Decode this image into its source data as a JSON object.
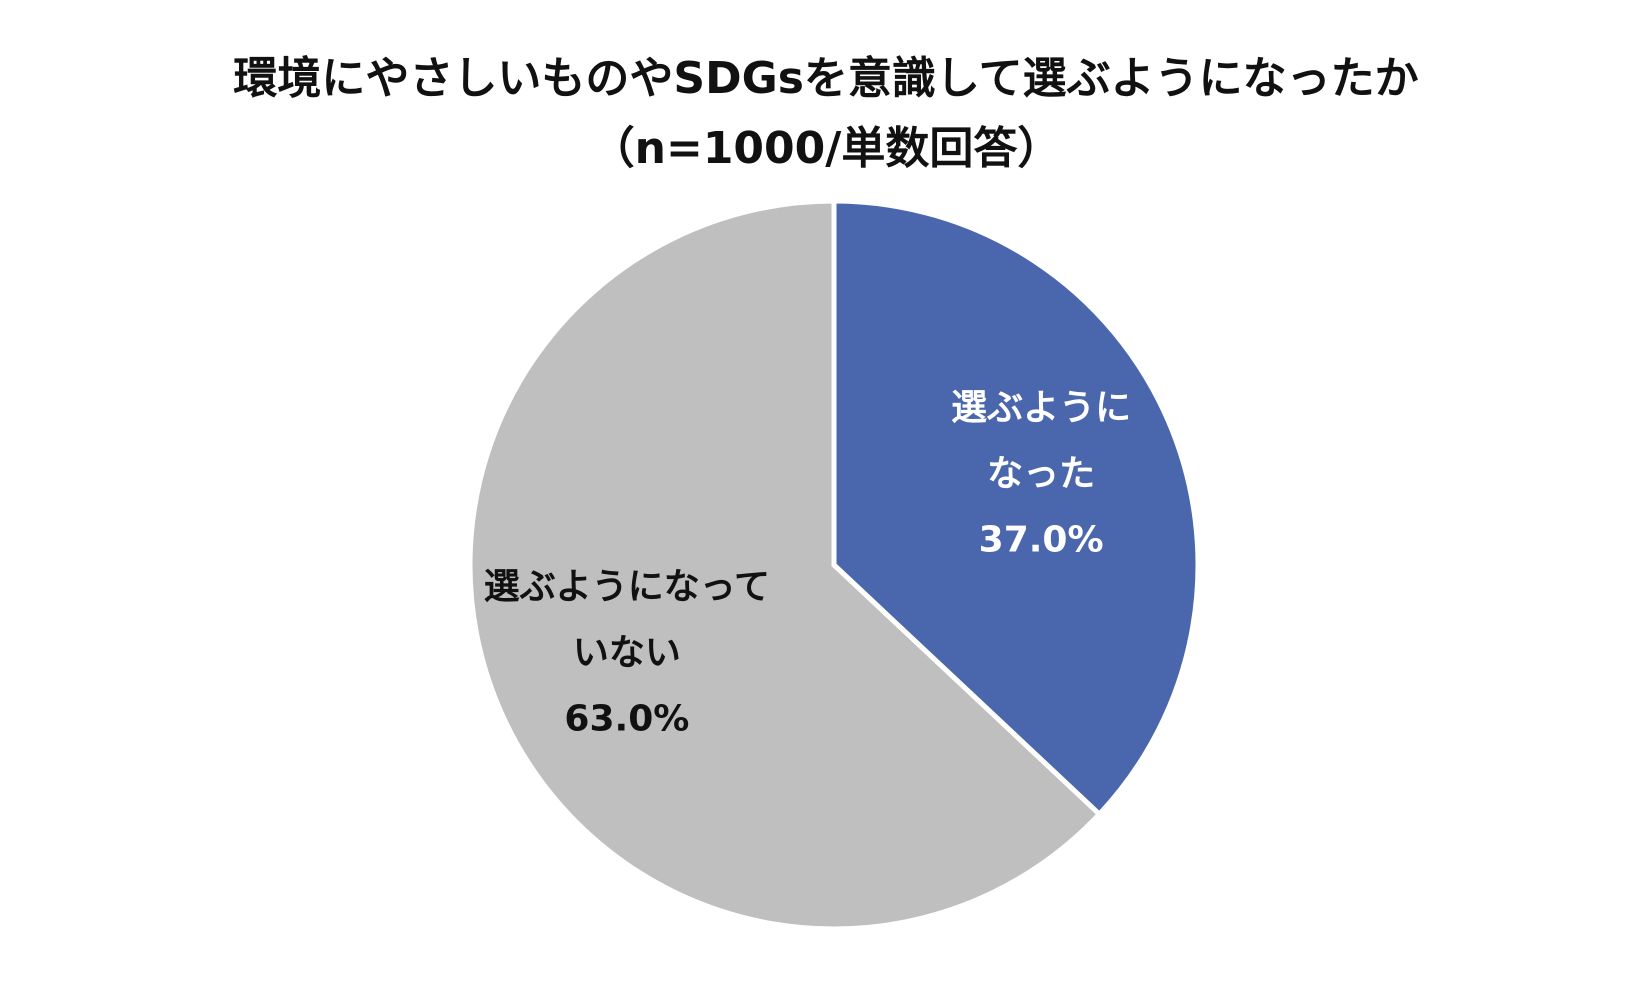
{
  "chart_data": {
    "type": "pie",
    "title": "環境にやさしいものやSDGsを意識して選ぶようになったか",
    "subtitle": "（n=1000/単数回答）",
    "slices": [
      {
        "label_lines": [
          "選ぶように",
          "なった"
        ],
        "value": 37.0,
        "value_label": "37.0%",
        "color": "#4a67ad",
        "text_color": "#ffffff"
      },
      {
        "label_lines": [
          "選ぶようになって",
          "いない"
        ],
        "value": 63.0,
        "value_label": "63.0%",
        "color": "#bfbfbf",
        "text_color": "#111111"
      }
    ]
  }
}
